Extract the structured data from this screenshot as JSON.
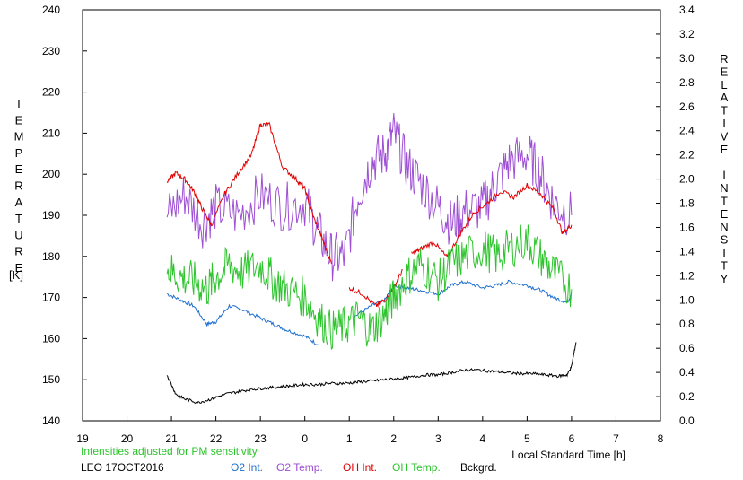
{
  "chart_data": {
    "type": "line",
    "y_left_label": "TEMPERATURE",
    "y_left_unit": "[K]",
    "y_right_label": "RELATIVE INTENSITY",
    "xlabel": "Local Standard Time [h]",
    "note": "Intensities adjusted for PM sensitivity",
    "station_date": "LEO 17OCT2016",
    "y_left_range": [
      140,
      240
    ],
    "y_left_ticks": [
      "140",
      "150",
      "160",
      "170",
      "180",
      "190",
      "200",
      "210",
      "220",
      "230",
      "240"
    ],
    "y_right_range": [
      0.0,
      3.4
    ],
    "y_right_ticks": [
      "0.0",
      "0.2",
      "0.4",
      "0.6",
      "0.8",
      "1.0",
      "1.2",
      "1.4",
      "1.6",
      "1.8",
      "2.0",
      "2.2",
      "2.4",
      "2.6",
      "2.8",
      "3.0",
      "3.2",
      "3.4"
    ],
    "x_range": [
      19,
      32
    ],
    "x_ticks": [
      {
        "v": 19,
        "label": "19"
      },
      {
        "v": 20,
        "label": "20"
      },
      {
        "v": 21,
        "label": "21"
      },
      {
        "v": 22,
        "label": "22"
      },
      {
        "v": 23,
        "label": "23"
      },
      {
        "v": 24,
        "label": "0"
      },
      {
        "v": 25,
        "label": "1"
      },
      {
        "v": 26,
        "label": "2"
      },
      {
        "v": 27,
        "label": "3"
      },
      {
        "v": 28,
        "label": "4"
      },
      {
        "v": 29,
        "label": "5"
      },
      {
        "v": 30,
        "label": "6"
      },
      {
        "v": 31,
        "label": "7"
      },
      {
        "v": 32,
        "label": "8"
      }
    ],
    "grid": false,
    "legend_position": "bottom",
    "series": [
      {
        "name": "O2 Int.",
        "axis": "right",
        "color": "#1e6fd0",
        "noise": 0.015,
        "x": [
          20.9,
          21.2,
          21.5,
          21.8,
          22.0,
          22.3,
          22.6,
          23.0,
          23.3,
          23.6,
          24.0,
          24.3
        ],
        "y": [
          1.05,
          1.0,
          0.95,
          0.8,
          0.82,
          0.95,
          0.92,
          0.85,
          0.8,
          0.75,
          0.7,
          0.63
        ]
      },
      {
        "name": "O2 Int.",
        "axis": "right",
        "color": "#1e6fd0",
        "noise": 0.015,
        "x": [
          25.1,
          25.5,
          25.8,
          26.0,
          26.3,
          26.6,
          27.0,
          27.3,
          27.6,
          28.0,
          28.3,
          28.6,
          29.0,
          29.3,
          29.6,
          29.9,
          30.0
        ],
        "y": [
          0.86,
          0.95,
          1.0,
          1.12,
          1.1,
          1.08,
          1.05,
          1.12,
          1.15,
          1.1,
          1.12,
          1.15,
          1.12,
          1.08,
          1.02,
          0.98,
          1.05
        ]
      },
      {
        "name": "O2 Temp.",
        "axis": "left",
        "color": "#9e4fd4",
        "noise": 6,
        "x": [
          20.9,
          21.3,
          21.7,
          22.0,
          22.5,
          23.0,
          23.5,
          24.0,
          24.3,
          24.6,
          24.9,
          25.2,
          25.5,
          25.8,
          26.0,
          26.3,
          26.6,
          27.0,
          27.3,
          27.6,
          28.0,
          28.3,
          28.6,
          29.0,
          29.3,
          29.6,
          30.0
        ],
        "y": [
          190,
          195,
          188,
          192,
          190,
          195,
          192,
          193,
          186,
          180,
          180,
          195,
          203,
          205,
          210,
          202,
          198,
          192,
          188,
          191,
          192,
          198,
          203,
          205,
          200,
          193,
          190
        ]
      },
      {
        "name": "OH Int.",
        "axis": "right",
        "color": "#e00000",
        "noise": 0.02,
        "x": [
          20.9,
          21.1,
          21.3,
          21.5,
          21.7,
          21.9,
          22.2,
          22.5,
          22.8,
          23.0,
          23.2,
          23.5,
          23.8,
          24.0,
          24.2,
          24.4,
          24.6
        ],
        "y": [
          1.98,
          2.05,
          2.0,
          1.9,
          1.75,
          1.62,
          1.88,
          2.05,
          2.2,
          2.45,
          2.45,
          2.1,
          2.0,
          1.92,
          1.68,
          1.5,
          1.3
        ]
      },
      {
        "name": "OH Int.",
        "axis": "right",
        "color": "#e00000",
        "noise": 0.02,
        "x": [
          25.0,
          25.3,
          25.6,
          25.8,
          26.0,
          26.2
        ],
        "y": [
          1.1,
          1.05,
          0.95,
          1.0,
          1.1,
          1.25
        ]
      },
      {
        "name": "OH Int.",
        "axis": "right",
        "color": "#e00000",
        "noise": 0.02,
        "x": [
          26.4,
          26.6,
          26.9,
          27.2,
          27.5,
          27.8,
          28.1,
          28.4,
          28.7,
          29.0,
          29.3,
          29.6,
          29.8,
          30.0
        ],
        "y": [
          1.38,
          1.42,
          1.48,
          1.35,
          1.55,
          1.72,
          1.8,
          1.9,
          1.85,
          1.95,
          1.88,
          1.75,
          1.55,
          1.62
        ]
      },
      {
        "name": "OH Temp.",
        "axis": "left",
        "color": "#2ec42e",
        "noise": 5,
        "x": [
          20.9,
          21.2,
          21.5,
          21.8,
          22.0,
          22.3,
          22.6,
          23.0,
          23.3,
          23.6,
          24.0,
          24.3,
          24.6,
          24.9,
          25.2,
          25.5,
          25.8,
          26.0,
          26.3,
          26.6,
          27.0,
          27.3,
          27.6,
          28.0,
          28.3,
          28.6,
          29.0,
          29.3,
          29.6,
          30.0
        ],
        "y": [
          177,
          175,
          174,
          172,
          175,
          178,
          176,
          178,
          174,
          172,
          170,
          165,
          162,
          163,
          165,
          162,
          166,
          170,
          175,
          178,
          174,
          178,
          180,
          182,
          180,
          182,
          184,
          180,
          176,
          172
        ]
      },
      {
        "name": "Bckgrd.",
        "axis": "right",
        "color": "#000000",
        "noise": 0.012,
        "x": [
          20.9,
          21.1,
          21.3,
          21.6,
          21.9,
          22.2,
          22.5,
          22.8,
          23.1,
          23.4,
          23.7,
          24.0,
          24.3,
          24.6,
          24.9,
          25.2,
          25.5,
          25.8,
          26.1,
          26.4,
          26.7,
          27.0,
          27.3,
          27.6,
          27.9,
          28.2,
          28.5,
          28.8,
          29.1,
          29.4,
          29.7,
          29.9,
          30.0,
          30.1
        ],
        "y": [
          0.38,
          0.22,
          0.18,
          0.15,
          0.18,
          0.22,
          0.24,
          0.26,
          0.27,
          0.28,
          0.29,
          0.3,
          0.3,
          0.31,
          0.31,
          0.32,
          0.33,
          0.34,
          0.35,
          0.36,
          0.38,
          0.38,
          0.4,
          0.42,
          0.42,
          0.41,
          0.4,
          0.39,
          0.39,
          0.38,
          0.37,
          0.38,
          0.45,
          0.65
        ]
      }
    ],
    "legend": [
      {
        "label": "O2 Int.",
        "color": "#1e6fd0"
      },
      {
        "label": "O2 Temp.",
        "color": "#9e4fd4"
      },
      {
        "label": "OH Int.",
        "color": "#e00000"
      },
      {
        "label": "OH Temp.",
        "color": "#2ec42e"
      },
      {
        "label": "Bckgrd.",
        "color": "#000000"
      }
    ]
  }
}
